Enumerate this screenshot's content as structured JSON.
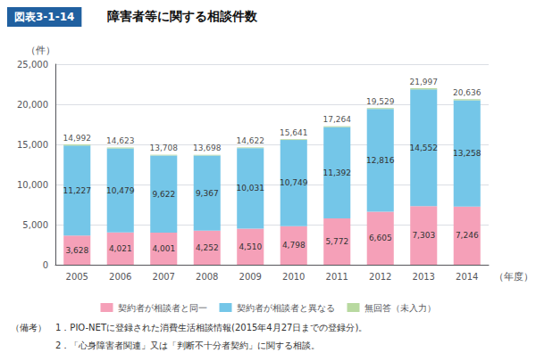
{
  "chart_data": {
    "type": "bar",
    "title": "障害者等に関する相談件数",
    "subtitle": "図表3-1-14",
    "ylabel": "（件）",
    "xlabel": "（年度）",
    "categories": [
      "2005",
      "2006",
      "2007",
      "2008",
      "2009",
      "2010",
      "2011",
      "2012",
      "2013",
      "2014"
    ],
    "series": [
      {
        "name": "契約者が相談者と同一",
        "color": "#f5a0b8",
        "data_labels": true,
        "values": [
          3628,
          4021,
          4001,
          4252,
          4510,
          4798,
          5772,
          6605,
          7303,
          7246
        ],
        "value_labels": [
          "3,628",
          "4,021",
          "4,001",
          "4,252",
          "4,510",
          "4,798",
          "5,772",
          "6,605",
          "7,303",
          "7,246"
        ]
      },
      {
        "name": "契約者が相談者と異なる",
        "color": "#74c6e8",
        "data_labels": true,
        "values": [
          11227,
          10479,
          9622,
          9367,
          10031,
          10749,
          11392,
          12816,
          14552,
          13258
        ],
        "value_labels": [
          "11,227",
          "10,479",
          "9,622",
          "9,367",
          "10,031",
          "10,749",
          "11,392",
          "12,816",
          "14,552",
          "13,258"
        ]
      },
      {
        "name": "無回答（未入力）",
        "color": "#b8d9a0",
        "data_labels": false,
        "values": [
          137,
          123,
          85,
          79,
          81,
          94,
          100,
          108,
          142,
          132
        ]
      }
    ],
    "totals": [
      14992,
      14623,
      13708,
      13698,
      14622,
      15641,
      17264,
      19529,
      21997,
      20636
    ],
    "total_labels": [
      "14,992",
      "14,623",
      "13,708",
      "13,698",
      "14,622",
      "15,641",
      "17,264",
      "19,529",
      "21,997",
      "20,636"
    ],
    "stacked": true,
    "data_labels": true,
    "ylim": [
      0,
      25000
    ],
    "yticks": [
      0,
      {
        "value": 5000,
        "label": "5,000"
      },
      {
        "value": 10000,
        "label": "10,000"
      },
      {
        "value": 15000,
        "label": "15,000"
      },
      {
        "value": 20000,
        "label": "20,000"
      },
      {
        "value": 25000,
        "label": "25,000"
      }
    ],
    "grid": true,
    "legend": "bottom",
    "annotations": [
      "（備考）　1．PIO-NETに登録された消費生活相談情報(2015年4月27日までの登録分)。",
      "　　　　　2．「心身障害者関連」又は「判断不十分者契約」に関する相談。"
    ]
  }
}
